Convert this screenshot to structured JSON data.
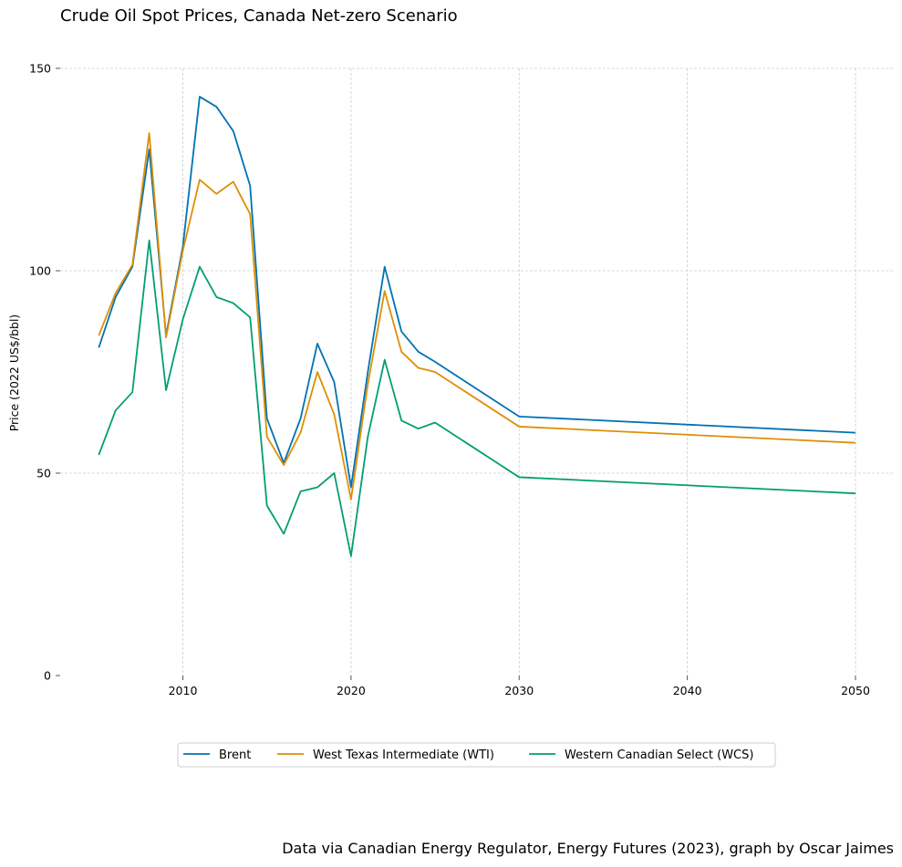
{
  "title": "Crude Oil Spot Prices, Canada Net-zero Scenario",
  "source": "Data via Canadian Energy Regulator, Energy Futures (2023), graph by Oscar Jaimes",
  "chart_data": {
    "type": "line",
    "title": "Crude Oil Spot Prices, Canada Net-zero Scenario",
    "xlabel": "",
    "ylabel": "Price (2022 US$/bbl)",
    "xlim": [
      2002.8,
      2052.3
    ],
    "ylim": [
      0,
      150
    ],
    "xticks": [
      2010,
      2020,
      2030,
      2040,
      2050
    ],
    "yticks": [
      0,
      50,
      100,
      150
    ],
    "grid": true,
    "legend_position": "bottom-center",
    "x": [
      2005,
      2006,
      2007,
      2008,
      2009,
      2010,
      2011,
      2012,
      2013,
      2014,
      2015,
      2016,
      2017,
      2018,
      2019,
      2020,
      2021,
      2022,
      2023,
      2024,
      2025,
      2030,
      2050
    ],
    "series": [
      {
        "name": "Brent",
        "color": "#0072b2",
        "values": [
          81,
          93.5,
          101,
          130,
          84,
          106,
          143,
          140.5,
          134.5,
          121,
          63.5,
          52.5,
          63.5,
          82,
          72.5,
          46.5,
          75,
          101,
          85,
          80,
          77.5,
          64,
          60
        ]
      },
      {
        "name": "West Texas Intermediate (WTI)",
        "color": "#de8f05",
        "values": [
          84,
          94.5,
          101.5,
          134,
          83.5,
          105,
          122.5,
          119,
          122,
          114,
          59,
          52,
          60,
          75,
          64.5,
          43.5,
          72,
          95,
          80,
          76,
          75,
          61.5,
          57.5
        ]
      },
      {
        "name": "Western Canadian Select (WCS)",
        "color": "#029e73",
        "values": [
          54.5,
          65.5,
          70,
          107.5,
          70.5,
          88,
          101,
          93.5,
          92,
          88.5,
          42,
          35,
          45.5,
          46.5,
          50,
          29.5,
          59,
          78,
          63,
          61,
          62.5,
          49,
          45
        ]
      }
    ]
  }
}
